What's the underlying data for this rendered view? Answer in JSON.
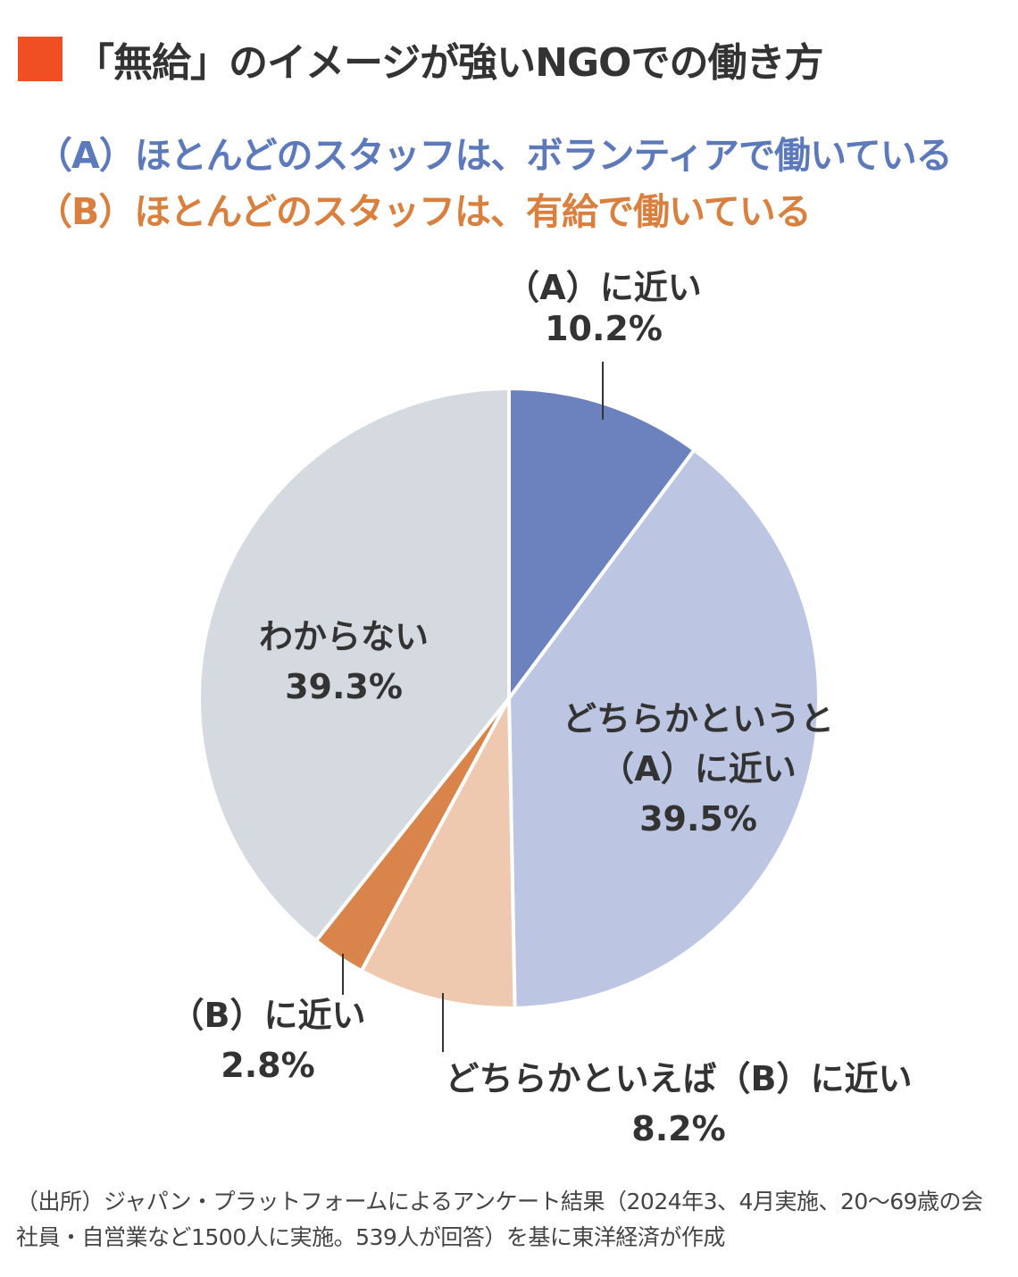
{
  "title": "「無給」のイメージが強いNGOでの働き方",
  "legend": {
    "a": "（A）ほとんどのスタッフは、ボランティアで働いている",
    "b": "（B）ほとんどのスタッフは、有給で働いている"
  },
  "chart_data": {
    "type": "pie",
    "slices": [
      {
        "label_lines": [
          "（A）に近い",
          "10.2%"
        ],
        "value": 10.2,
        "color": "#6c82bf"
      },
      {
        "label_lines": [
          "どちらかというと",
          "（A）に近い",
          "39.5%"
        ],
        "value": 39.5,
        "color": "#bcc6e2"
      },
      {
        "label_lines": [
          "どちらかといえば（B）に近い",
          "8.2%"
        ],
        "value": 8.2,
        "color": "#eec9b0"
      },
      {
        "label_lines": [
          "（B）に近い",
          "2.8%"
        ],
        "value": 2.8,
        "color": "#d8844b"
      },
      {
        "label_lines": [
          "わからない",
          "39.3%"
        ],
        "value": 39.3,
        "color": "#d5dae1"
      }
    ]
  },
  "note": {
    "line1": "（出所）ジャパン・プラットフォームによるアンケート結果（2024年3、4月実施、20〜69歳の会",
    "line2": "社員・自営業など1500人に実施。539人が回答）を基に東洋経済が作成"
  }
}
